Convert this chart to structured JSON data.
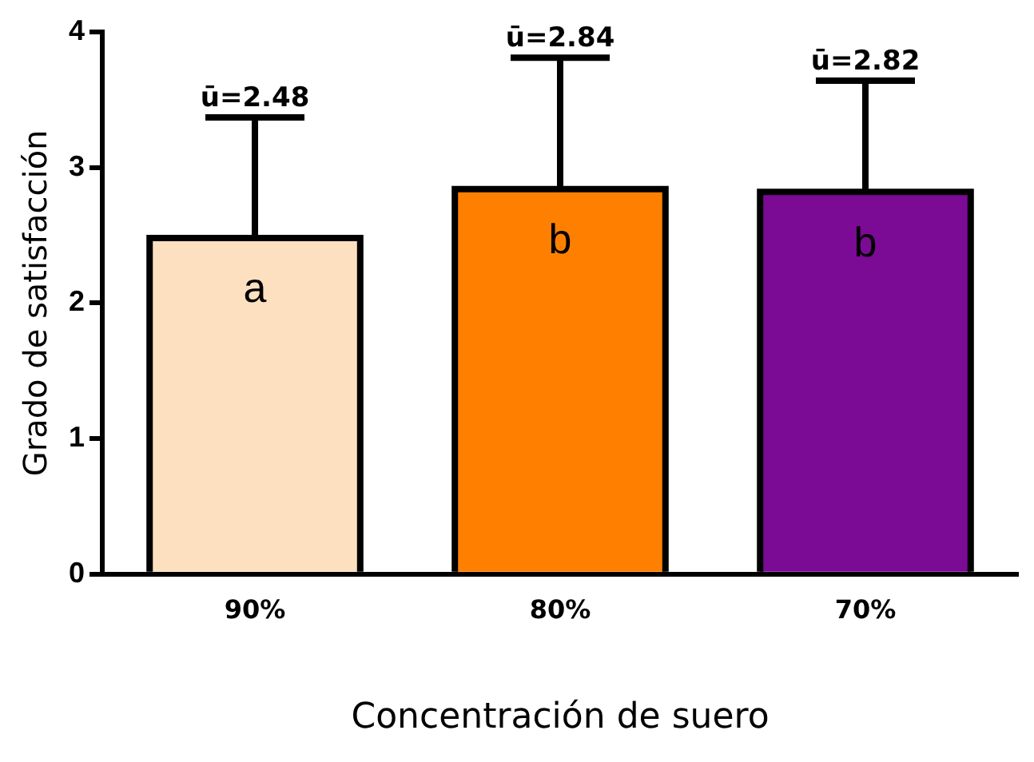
{
  "chart_data": {
    "type": "bar",
    "xlabel": "Concentración de suero",
    "ylabel": "Grado de satisfacción",
    "categories": [
      "90%",
      "80%",
      "70%"
    ],
    "values": [
      2.48,
      2.84,
      2.82
    ],
    "colors": [
      "#fde0c0",
      "#ff8000",
      "#7b0a95"
    ],
    "errors": [
      [
        2.48,
        3.37
      ],
      [
        2.84,
        3.81
      ],
      [
        2.82,
        3.64
      ]
    ],
    "annotations": [
      "a",
      "b",
      "b",
      {
        "text": "ū=2.48",
        "x": "90%",
        "y": 3.37
      },
      {
        "text": "ū=2.84",
        "x": "80%",
        "y": 3.81
      },
      {
        "text": "ū=2.82",
        "x": "70%",
        "y": 3.64
      }
    ],
    "ylim": [
      0,
      4
    ],
    "yticks": [
      0,
      1,
      2,
      3,
      4
    ],
    "grid": false,
    "legend": false
  }
}
